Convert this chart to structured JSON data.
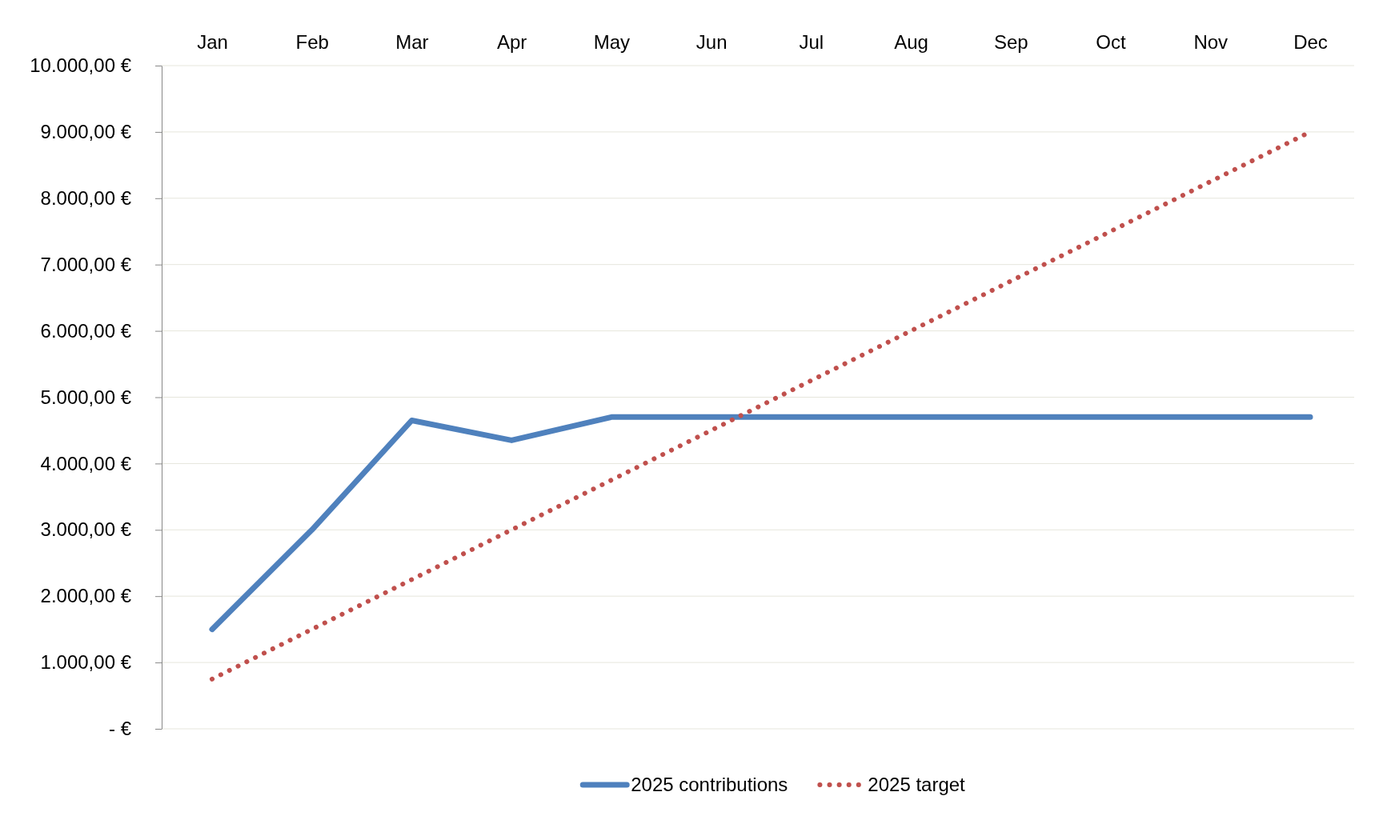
{
  "chart_data": {
    "type": "line",
    "categories": [
      "Jan",
      "Feb",
      "Mar",
      "Apr",
      "May",
      "Jun",
      "Jul",
      "Aug",
      "Sep",
      "Oct",
      "Nov",
      "Dec"
    ],
    "series": [
      {
        "name": "2025 contributions",
        "color": "#4f81bd",
        "line_style": "solid",
        "values": [
          1500,
          3000,
          4650,
          4350,
          4700,
          4700,
          4700,
          4700,
          4700,
          4700,
          4700,
          4700
        ]
      },
      {
        "name": "2025 target",
        "color": "#c0504d",
        "line_style": "dotted",
        "values": [
          750,
          1500,
          2250,
          3000,
          3750,
          4500,
          5250,
          6000,
          6750,
          7500,
          8250,
          9000
        ]
      }
    ],
    "ylim": [
      0,
      10000
    ],
    "yticks": [
      {
        "value": 0,
        "label": "-   €"
      },
      {
        "value": 1000,
        "label": "1.000,00 €"
      },
      {
        "value": 2000,
        "label": "2.000,00 €"
      },
      {
        "value": 3000,
        "label": "3.000,00 €"
      },
      {
        "value": 4000,
        "label": "4.000,00 €"
      },
      {
        "value": 5000,
        "label": "5.000,00 €"
      },
      {
        "value": 6000,
        "label": "6.000,00 €"
      },
      {
        "value": 7000,
        "label": "7.000,00 €"
      },
      {
        "value": 8000,
        "label": "8.000,00 €"
      },
      {
        "value": 9000,
        "label": "9.000,00 €"
      },
      {
        "value": 10000,
        "label": "10.000,00 €"
      }
    ],
    "grid": "y",
    "legend": "bottom",
    "marker": "none"
  }
}
